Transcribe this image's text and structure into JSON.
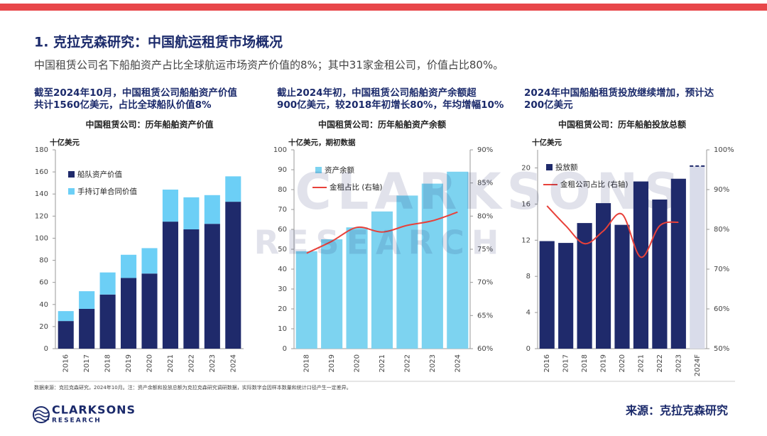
{
  "header": {
    "title": "1. 克拉克森研究：中国航运租赁市场概况",
    "subtitle": "中国租赁公司名下船舶资产占比全球航运市场资产价值的8%；其中31家金租公司，价值占比80%。"
  },
  "chart_data": [
    {
      "type": "bar",
      "heading": [
        "截至2024年10月，中国租赁公司船舶资产价值",
        "共计1560亿美元，占比全球船队价值8%"
      ],
      "title": "中国租赁公司：历年船舶资产价值",
      "y_label": "十亿美元",
      "stacked": true,
      "categories": [
        "2016",
        "2017",
        "2018",
        "2019",
        "2020",
        "2021",
        "2022",
        "2023",
        "2024"
      ],
      "series": [
        {
          "name": "船队资产价值",
          "color": "#1f2a6b",
          "values": [
            25,
            36,
            49,
            64,
            68,
            115,
            108,
            113,
            133
          ]
        },
        {
          "name": "手持订单合同价值",
          "color": "#6ccff6",
          "values": [
            9,
            16,
            20,
            21,
            23,
            29,
            29,
            26,
            23
          ]
        }
      ],
      "ylim": [
        0,
        180
      ],
      "yticks": [
        0,
        20,
        40,
        60,
        80,
        100,
        120,
        140,
        160,
        180
      ]
    },
    {
      "type": "bar",
      "heading": [
        "截止2024年初，中国租赁公司船舶资产余额超",
        "900亿美元，较2018年初增长80%，年均增幅10%"
      ],
      "title": "中国租赁公司：历年船舶资产余额",
      "y_label": "十亿美元，期初数据",
      "categories": [
        "2018",
        "2019",
        "2020",
        "2021",
        "2022",
        "2023",
        "2024"
      ],
      "series": [
        {
          "name": "资产余额",
          "color": "#7dd3f0",
          "values": [
            49,
            55,
            61,
            69,
            77,
            83,
            89
          ]
        },
        {
          "name": "金租占比 (右轴)",
          "type": "line",
          "axis": "y2",
          "color": "#e8413a",
          "values": [
            74.4,
            76.2,
            78.3,
            77.6,
            78.6,
            79.3,
            80.6
          ]
        }
      ],
      "ylim": [
        0,
        100
      ],
      "yticks": [
        0,
        10,
        20,
        30,
        40,
        50,
        60,
        70,
        80,
        90,
        100
      ],
      "y2lim": [
        60,
        90
      ],
      "y2ticks": [
        {
          "value": 60,
          "label": "60%"
        },
        {
          "value": 65,
          "label": "65%"
        },
        {
          "value": 70,
          "label": "70%"
        },
        {
          "value": 75,
          "label": "75%"
        },
        {
          "value": 80,
          "label": "80%"
        },
        {
          "value": 85,
          "label": "85%"
        },
        {
          "value": 90,
          "label": "90%"
        }
      ]
    },
    {
      "type": "bar",
      "heading": [
        "2024年中国船舶租赁投放继续增加，预计达",
        "200亿美元"
      ],
      "title": "中国租赁公司：历年船舶投放总额",
      "y_label": "十亿美元",
      "categories": [
        "2016",
        "2017",
        "2018",
        "2019",
        "2020",
        "2021",
        "2022",
        "2023",
        "2024F"
      ],
      "series": [
        {
          "name": "投放额",
          "color": "#1f2a6b",
          "colors": [
            "#1f2a6b",
            "#1f2a6b",
            "#1f2a6b",
            "#1f2a6b",
            "#1f2a6b",
            "#1f2a6b",
            "#1f2a6b",
            "#1f2a6b",
            "#d9dcea"
          ],
          "values": [
            11.9,
            11.7,
            13.9,
            16.1,
            13.7,
            18.5,
            16.5,
            18.8,
            20.2
          ]
        },
        {
          "name": "金租公司占比 (右轴)",
          "type": "line",
          "axis": "y2",
          "color": "#e8413a",
          "values": [
            85.9,
            80.9,
            76.4,
            79.6,
            83.8,
            73,
            80.9,
            81.8,
            null
          ]
        }
      ],
      "ylim": [
        0,
        22
      ],
      "yticks": [
        0,
        4,
        8,
        12,
        16,
        20
      ],
      "y2lim": [
        50,
        100
      ],
      "y2ticks": [
        {
          "value": 50,
          "label": "50%"
        },
        {
          "value": 60,
          "label": "60%"
        },
        {
          "value": 70,
          "label": "70%"
        },
        {
          "value": 80,
          "label": "80%"
        },
        {
          "value": 90,
          "label": "90%"
        },
        {
          "value": 100,
          "label": "100%"
        }
      ]
    }
  ],
  "watermark": [
    "CLARKSONS",
    "RESEARCH"
  ],
  "footer": {
    "note": "数据来源：克拉克森研究，2024年10月。注：资产余额和投放总额为克拉克森研究调研数据，实际数字会因样本数量和统计口径产生一定差异。",
    "logo": [
      "CLARKSONS",
      "RESEARCH"
    ],
    "source": "来源：克拉克森研究"
  }
}
